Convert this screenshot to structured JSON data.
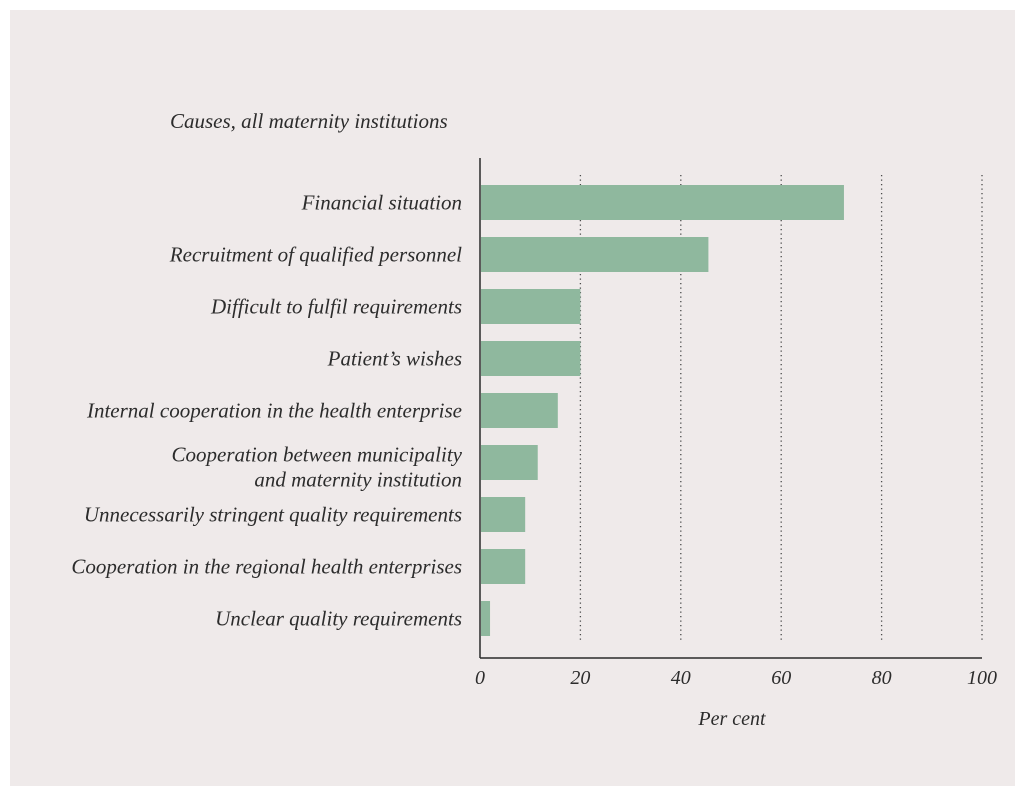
{
  "colors": {
    "page_background": "#ffffff",
    "panel_background": "#efeaea",
    "bar": "#8fb89e",
    "text": "#2c2c2c",
    "axis": "#2a2a2a",
    "gridline": "#4a4a4a"
  },
  "chart_data": {
    "type": "bar",
    "orientation": "horizontal",
    "title": "Causes, all maternity institutions",
    "categories": [
      "Financial situation",
      "Recruitment of qualified personnel",
      "Difficult to fulfil requirements",
      "Patient’s wishes",
      "Internal cooperation in the health enterprise",
      "Cooperation between municipality\nand maternity institution",
      "Unnecessarily stringent quality requirements",
      "Cooperation in the regional health enterprises",
      "Unclear quality requirements"
    ],
    "values": [
      72.5,
      45.5,
      20,
      20,
      15.5,
      11.5,
      9,
      9,
      2
    ],
    "xlabel": "Per cent",
    "xlim": [
      0,
      100
    ],
    "xticks": [
      0,
      20,
      40,
      60,
      80,
      100
    ],
    "grid": true
  }
}
